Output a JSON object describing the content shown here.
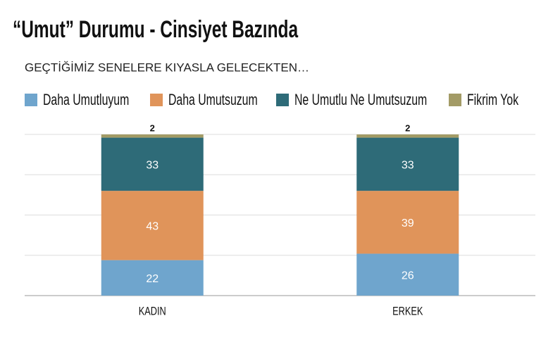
{
  "chart_data": {
    "type": "stacked-bar",
    "title": "“Umut” Durumu - Cinsiyet Bazında",
    "subtitle": "GEÇTİĞİMİZ SENELERE KIYASLA GELECEKTEN…",
    "categories": [
      "KADIN",
      "ERKEK"
    ],
    "series": [
      {
        "name": "Daha Umutluyum",
        "color": "#6fa5cd",
        "values": [
          22,
          26
        ]
      },
      {
        "name": "Daha Umutsuzum",
        "color": "#e0945a",
        "values": [
          43,
          39
        ]
      },
      {
        "name": "Ne Umutlu Ne Umutsuzum",
        "color": "#2e6b78",
        "values": [
          33,
          33
        ]
      },
      {
        "name": "Fikrim Yok",
        "color": "#a39b66",
        "values": [
          2,
          2
        ]
      }
    ],
    "ylim": [
      0,
      100
    ],
    "yticks": [
      0,
      25,
      50,
      75,
      100
    ],
    "grid": true
  }
}
